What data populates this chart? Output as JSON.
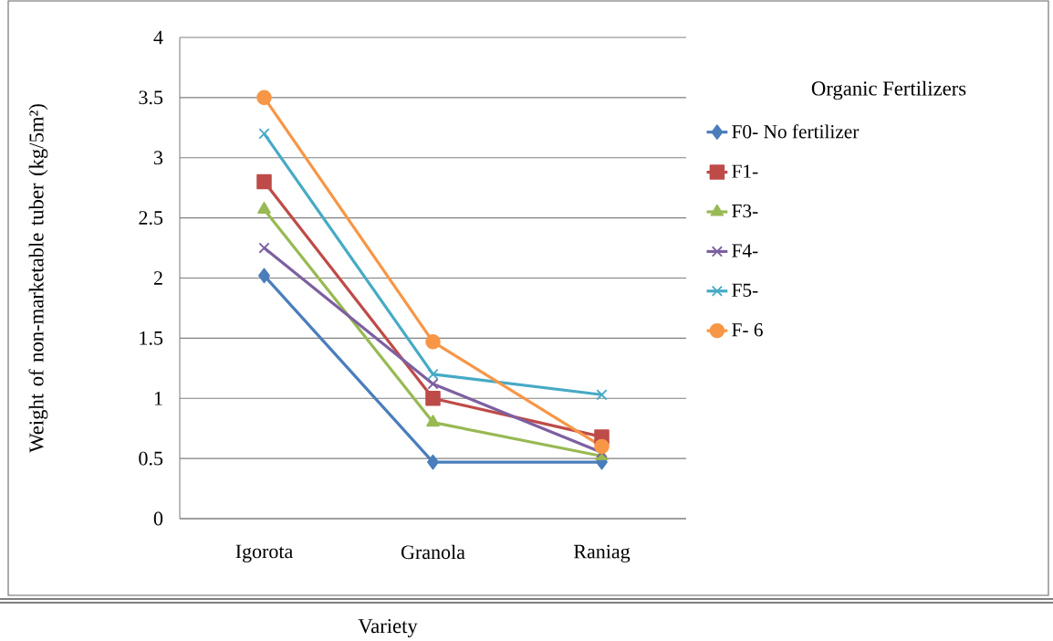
{
  "chart_data": {
    "type": "line",
    "xlabel": "Variety",
    "ylabel": "Weight of non-marketable tuber (kg/5m²)",
    "legend_title": "Organic Fertilizers",
    "categories": [
      "Igorota",
      "Granola",
      "Raniag"
    ],
    "ylim": [
      0,
      4
    ],
    "yticks": [
      0,
      0.5,
      1,
      1.5,
      2,
      2.5,
      3,
      3.5,
      4
    ],
    "grid": "y",
    "legend": "right",
    "line_style": "solid",
    "series": [
      {
        "name": "F0- No fertilizer",
        "color": "#4a7ebb",
        "marker": "diamond",
        "values": [
          2.02,
          0.47,
          0.47
        ]
      },
      {
        "name": "F1-",
        "color": "#be4b48",
        "marker": "square",
        "values": [
          2.8,
          1.0,
          0.68
        ]
      },
      {
        "name": "F3-",
        "color": "#98b954",
        "marker": "triangle",
        "values": [
          2.57,
          0.8,
          0.52
        ]
      },
      {
        "name": "F4-",
        "color": "#7d60a0",
        "marker": "cross",
        "values": [
          2.25,
          1.12,
          0.55
        ]
      },
      {
        "name": "F5-",
        "color": "#46aac5",
        "marker": "cross",
        "values": [
          3.2,
          1.2,
          1.03
        ]
      },
      {
        "name": "F- 6",
        "color": "#f79646",
        "marker": "circle",
        "values": [
          3.5,
          1.47,
          0.6
        ]
      }
    ]
  }
}
